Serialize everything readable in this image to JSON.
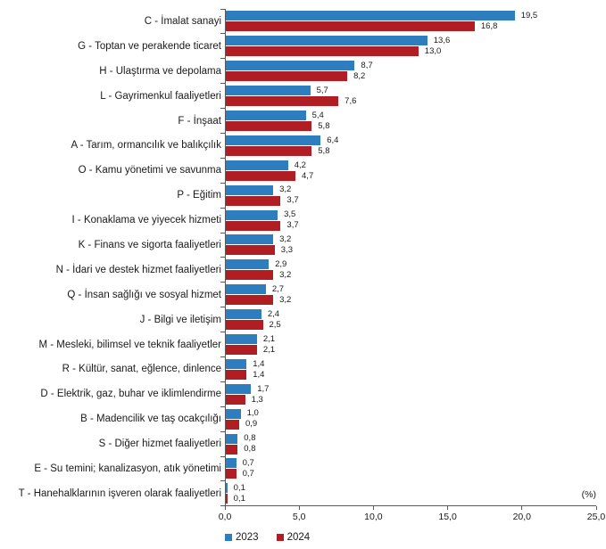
{
  "chart_data": {
    "type": "bar",
    "orientation": "horizontal",
    "title": "",
    "xlabel": "",
    "ylabel": "",
    "unit_label": "(%)",
    "xlim": [
      0,
      25
    ],
    "xticks": [
      0,
      5,
      10,
      15,
      20,
      25
    ],
    "xtick_labels": [
      "0,0",
      "5,0",
      "10,0",
      "15,0",
      "20,0",
      "25,0"
    ],
    "grid": false,
    "legend_position": "bottom",
    "decimal_separator": ",",
    "categories": [
      "C - İmalat sanayi",
      "G - Toptan ve perakende ticaret",
      "H - Ulaştırma ve depolama",
      "L - Gayrimenkul faaliyetleri",
      "F - İnşaat",
      "A - Tarım, ormancılık ve balıkçılık",
      "O - Kamu yönetimi ve savunma",
      "P - Eğitim",
      "I - Konaklama ve yiyecek hizmeti",
      "K - Finans ve sigorta faaliyetleri",
      "N - İdari ve destek hizmet faaliyetleri",
      "Q - İnsan sağlığı ve sosyal hizmet",
      "J - Bilgi ve iletişim",
      "M - Mesleki, bilimsel ve teknik faaliyetler",
      "R - Kültür, sanat, eğlence, dinlence",
      "D - Elektrik, gaz, buhar ve iklimlendirme",
      "B - Madencilik ve taş ocakçılığı",
      "S - Diğer hizmet faaliyetleri",
      "E - Su temini; kanalizasyon, atık yönetimi",
      "T - Hanehalklarının işveren olarak faaliyetleri"
    ],
    "series": [
      {
        "name": "2023",
        "color": "#2E7DBF",
        "values": [
          19.5,
          13.6,
          8.7,
          5.7,
          5.4,
          6.4,
          4.2,
          3.2,
          3.5,
          3.2,
          2.9,
          2.7,
          2.4,
          2.1,
          1.4,
          1.7,
          1.0,
          0.8,
          0.7,
          0.1
        ]
      },
      {
        "name": "2024",
        "color": "#B01E24",
        "values": [
          16.8,
          13.0,
          8.2,
          7.6,
          5.8,
          5.8,
          4.7,
          3.7,
          3.7,
          3.3,
          3.2,
          3.2,
          2.5,
          2.1,
          1.4,
          1.3,
          0.9,
          0.8,
          0.7,
          0.1
        ]
      }
    ],
    "axis_color": "#595959"
  }
}
